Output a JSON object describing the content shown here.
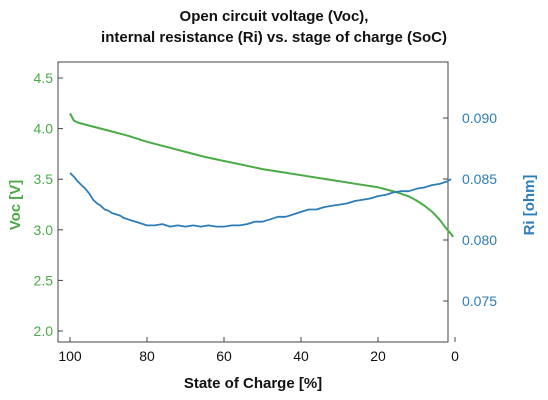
{
  "title_line1": "Open circuit voltage (Voc),",
  "title_line2": "internal resistance (Ri) vs. stage of charge (SoC)",
  "chart_data": {
    "type": "line",
    "title": "Open circuit voltage (Voc), internal resistance (Ri) vs. stage of charge (SoC)",
    "xlabel": "State of Charge [%]",
    "xlim": [
      100,
      0
    ],
    "xticks": [
      100,
      80,
      60,
      40,
      20,
      0
    ],
    "y_left": {
      "label": "Voc [V]",
      "lim": [
        2.0,
        4.5
      ],
      "ticks": [
        "2.0",
        "2.5",
        "3.0",
        "3.5",
        "4.0",
        "4.5"
      ],
      "color": "#4aab46"
    },
    "y_right": {
      "label": "Ri [ohm]",
      "lim": [
        0.075,
        0.09
      ],
      "ticks": [
        "0.075",
        "0.080",
        "0.085",
        "0.090"
      ],
      "color": "#2e7db8"
    },
    "grid": false,
    "series": [
      {
        "name": "Voc [V]",
        "axis": "left",
        "color": "#4aab46",
        "x": [
          100,
          99,
          98,
          96,
          94,
          92,
          90,
          85,
          80,
          75,
          70,
          65,
          60,
          55,
          50,
          45,
          40,
          35,
          30,
          25,
          20,
          15,
          12,
          10,
          8,
          6,
          5,
          4,
          3,
          2,
          1,
          0.5
        ],
        "y": [
          4.15,
          4.08,
          4.06,
          4.04,
          4.02,
          4.0,
          3.98,
          3.93,
          3.87,
          3.82,
          3.77,
          3.72,
          3.68,
          3.64,
          3.6,
          3.57,
          3.54,
          3.51,
          3.48,
          3.45,
          3.42,
          3.37,
          3.33,
          3.29,
          3.24,
          3.18,
          3.14,
          3.1,
          3.05,
          3.0,
          2.96,
          2.93
        ]
      },
      {
        "name": "Ri [ohm]",
        "axis": "right",
        "color": "#2e7db8",
        "x": [
          100,
          99,
          98,
          97,
          96,
          95,
          94,
          93,
          92,
          91,
          90,
          89,
          88,
          87,
          86,
          85,
          84,
          82,
          80,
          78,
          76,
          74,
          72,
          70,
          68,
          66,
          64,
          62,
          60,
          58,
          56,
          54,
          52,
          50,
          48,
          46,
          44,
          42,
          40,
          38,
          36,
          34,
          32,
          30,
          28,
          26,
          24,
          22,
          20,
          18,
          16,
          14,
          12,
          10,
          8,
          6,
          4,
          2,
          1
        ],
        "y": [
          0.0855,
          0.0852,
          0.0848,
          0.0845,
          0.0842,
          0.0838,
          0.0833,
          0.083,
          0.0828,
          0.0825,
          0.0824,
          0.0822,
          0.0821,
          0.082,
          0.0818,
          0.0817,
          0.0816,
          0.0814,
          0.0812,
          0.0812,
          0.0813,
          0.0811,
          0.0812,
          0.0811,
          0.0812,
          0.0811,
          0.0812,
          0.0811,
          0.0811,
          0.0812,
          0.0812,
          0.0813,
          0.0815,
          0.0815,
          0.0817,
          0.0819,
          0.0819,
          0.0821,
          0.0823,
          0.0825,
          0.0825,
          0.0827,
          0.0828,
          0.0829,
          0.083,
          0.0832,
          0.0833,
          0.0834,
          0.0836,
          0.0837,
          0.0839,
          0.084,
          0.084,
          0.0842,
          0.0843,
          0.0845,
          0.0846,
          0.0848,
          0.085
        ]
      }
    ]
  }
}
